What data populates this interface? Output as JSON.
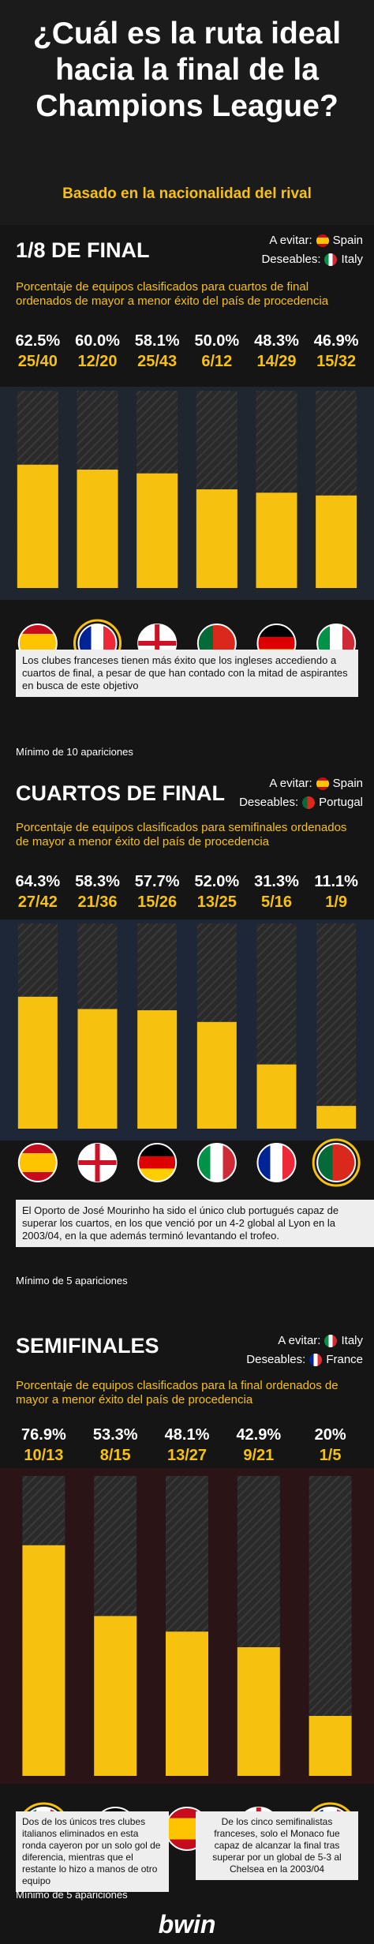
{
  "title": "¿Cuál es la ruta ideal hacia la final de la Champions League?",
  "subtitle": "Basado en la nacionalidad del rival",
  "brand": "bwin",
  "colors": {
    "accent": "#f6c10f",
    "bar": "#f6c10f",
    "background": "#151515"
  },
  "sections": [
    {
      "title": "1/8 DE FINAL",
      "avoid_label": "A evitar:",
      "avoid_country": "Spain",
      "desired_label": "Deseables:",
      "desired_country": "Italy",
      "description": "Porcentaje de equipos clasificados para cuartos de final ordenados de mayor a menor éxito del país de procedencia",
      "callout": "Los clubes franceses tienen más éxito que los ingleses accediendo a cuartos de final, a pesar de que han contado con la mitad de aspirantes en busca de este objetivo",
      "minimum": "Mínimo de 10 apariciones"
    },
    {
      "title": "CUARTOS DE FINAL",
      "avoid_label": "A evitar:",
      "avoid_country": "Spain",
      "desired_label": "Deseables:",
      "desired_country": "Portugal",
      "description": "Porcentaje de equipos clasificados para semifinales ordenados de mayor a menor éxito del país de procedencia",
      "callout": "El Oporto de José Mourinho ha sido el único club portugués capaz de superar los cuartos, en los que venció por un 4-2 global al Lyon en la 2003/04, en la que además terminó levantando el trofeo.",
      "minimum": "Mínimo de 5 apariciones"
    },
    {
      "title": "SEMIFINALES",
      "avoid_label": "A evitar:",
      "avoid_country": "Italy",
      "desired_label": "Deseables:",
      "desired_country": "France",
      "description": "Porcentaje de equipos clasificados para la final ordenados de mayor a menor éxito del país de procedencia",
      "callout_left": "Dos de los únicos tres clubes italianos eliminados en esta ronda cayeron por un solo gol de diferencia, mientras que el restante lo hizo a manos de otro equipo",
      "callout_right": "De los cinco semifinalistas franceses, solo el Monaco fue capaz de alcanzar la final tras superar por un global de 5-3 al Chelsea en la 2003/04",
      "minimum": "Mínimo de 5 apariciones"
    }
  ],
  "chart_data": [
    {
      "type": "bar",
      "categories": [
        "Spain",
        "France",
        "England",
        "Portugal",
        "Germany",
        "Italy"
      ],
      "values": [
        62.5,
        60.0,
        58.1,
        50.0,
        48.3,
        46.9
      ],
      "value_labels": [
        "62.5%",
        "60.0%",
        "58.1%",
        "50.0%",
        "48.3%",
        "46.9%"
      ],
      "ratio_labels": [
        "25/40",
        "12/20",
        "25/43",
        "6/12",
        "14/29",
        "15/32"
      ],
      "ylim": [
        0,
        100
      ]
    },
    {
      "type": "bar",
      "categories": [
        "Spain",
        "England",
        "Germany",
        "Italy",
        "France",
        "Portugal"
      ],
      "values": [
        64.3,
        58.3,
        57.7,
        52.0,
        31.3,
        11.1
      ],
      "value_labels": [
        "64.3%",
        "58.3%",
        "57.7%",
        "52.0%",
        "31.3%",
        "11.1%"
      ],
      "ratio_labels": [
        "27/42",
        "21/36",
        "15/26",
        "13/25",
        "5/16",
        "1/9"
      ],
      "ylim": [
        0,
        100
      ]
    },
    {
      "type": "bar",
      "categories": [
        "Italy",
        "Germany",
        "Spain",
        "England",
        "France"
      ],
      "values": [
        76.9,
        53.3,
        48.1,
        42.9,
        20
      ],
      "value_labels": [
        "76.9%",
        "53.3%",
        "48.1%",
        "42.9%",
        "20%"
      ],
      "ratio_labels": [
        "10/13",
        "8/15",
        "13/27",
        "9/21",
        "1/5"
      ],
      "ylim": [
        0,
        100
      ]
    }
  ]
}
